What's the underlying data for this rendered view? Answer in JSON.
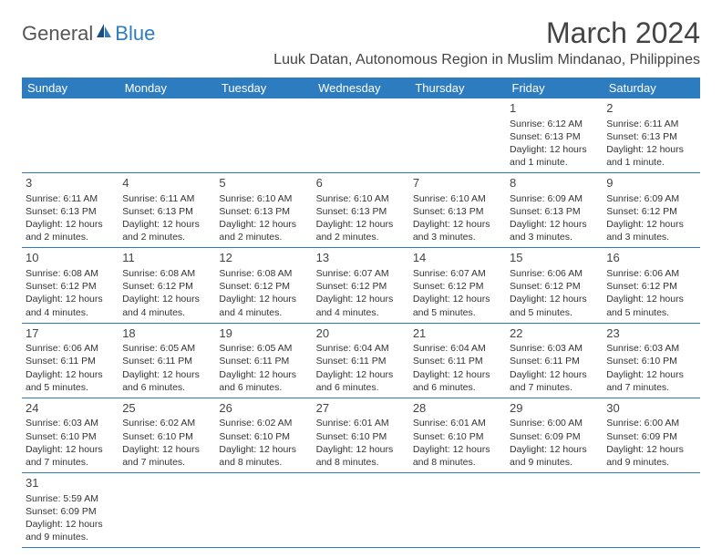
{
  "logo": {
    "part1": "General",
    "part2": "Blue"
  },
  "title": "March 2024",
  "location": "Luuk Datan, Autonomous Region in Muslim Mindanao, Philippines",
  "colors": {
    "header_bg": "#2e7cc0",
    "header_text": "#ffffff",
    "border": "#2e7cc0",
    "text": "#333333",
    "background": "#ffffff"
  },
  "dayHeaders": [
    "Sunday",
    "Monday",
    "Tuesday",
    "Wednesday",
    "Thursday",
    "Friday",
    "Saturday"
  ],
  "weeks": [
    [
      null,
      null,
      null,
      null,
      null,
      {
        "d": "1",
        "sr": "Sunrise: 6:12 AM",
        "ss": "Sunset: 6:13 PM",
        "dl": "Daylight: 12 hours and 1 minute."
      },
      {
        "d": "2",
        "sr": "Sunrise: 6:11 AM",
        "ss": "Sunset: 6:13 PM",
        "dl": "Daylight: 12 hours and 1 minute."
      }
    ],
    [
      {
        "d": "3",
        "sr": "Sunrise: 6:11 AM",
        "ss": "Sunset: 6:13 PM",
        "dl": "Daylight: 12 hours and 2 minutes."
      },
      {
        "d": "4",
        "sr": "Sunrise: 6:11 AM",
        "ss": "Sunset: 6:13 PM",
        "dl": "Daylight: 12 hours and 2 minutes."
      },
      {
        "d": "5",
        "sr": "Sunrise: 6:10 AM",
        "ss": "Sunset: 6:13 PM",
        "dl": "Daylight: 12 hours and 2 minutes."
      },
      {
        "d": "6",
        "sr": "Sunrise: 6:10 AM",
        "ss": "Sunset: 6:13 PM",
        "dl": "Daylight: 12 hours and 2 minutes."
      },
      {
        "d": "7",
        "sr": "Sunrise: 6:10 AM",
        "ss": "Sunset: 6:13 PM",
        "dl": "Daylight: 12 hours and 3 minutes."
      },
      {
        "d": "8",
        "sr": "Sunrise: 6:09 AM",
        "ss": "Sunset: 6:13 PM",
        "dl": "Daylight: 12 hours and 3 minutes."
      },
      {
        "d": "9",
        "sr": "Sunrise: 6:09 AM",
        "ss": "Sunset: 6:12 PM",
        "dl": "Daylight: 12 hours and 3 minutes."
      }
    ],
    [
      {
        "d": "10",
        "sr": "Sunrise: 6:08 AM",
        "ss": "Sunset: 6:12 PM",
        "dl": "Daylight: 12 hours and 4 minutes."
      },
      {
        "d": "11",
        "sr": "Sunrise: 6:08 AM",
        "ss": "Sunset: 6:12 PM",
        "dl": "Daylight: 12 hours and 4 minutes."
      },
      {
        "d": "12",
        "sr": "Sunrise: 6:08 AM",
        "ss": "Sunset: 6:12 PM",
        "dl": "Daylight: 12 hours and 4 minutes."
      },
      {
        "d": "13",
        "sr": "Sunrise: 6:07 AM",
        "ss": "Sunset: 6:12 PM",
        "dl": "Daylight: 12 hours and 4 minutes."
      },
      {
        "d": "14",
        "sr": "Sunrise: 6:07 AM",
        "ss": "Sunset: 6:12 PM",
        "dl": "Daylight: 12 hours and 5 minutes."
      },
      {
        "d": "15",
        "sr": "Sunrise: 6:06 AM",
        "ss": "Sunset: 6:12 PM",
        "dl": "Daylight: 12 hours and 5 minutes."
      },
      {
        "d": "16",
        "sr": "Sunrise: 6:06 AM",
        "ss": "Sunset: 6:12 PM",
        "dl": "Daylight: 12 hours and 5 minutes."
      }
    ],
    [
      {
        "d": "17",
        "sr": "Sunrise: 6:06 AM",
        "ss": "Sunset: 6:11 PM",
        "dl": "Daylight: 12 hours and 5 minutes."
      },
      {
        "d": "18",
        "sr": "Sunrise: 6:05 AM",
        "ss": "Sunset: 6:11 PM",
        "dl": "Daylight: 12 hours and 6 minutes."
      },
      {
        "d": "19",
        "sr": "Sunrise: 6:05 AM",
        "ss": "Sunset: 6:11 PM",
        "dl": "Daylight: 12 hours and 6 minutes."
      },
      {
        "d": "20",
        "sr": "Sunrise: 6:04 AM",
        "ss": "Sunset: 6:11 PM",
        "dl": "Daylight: 12 hours and 6 minutes."
      },
      {
        "d": "21",
        "sr": "Sunrise: 6:04 AM",
        "ss": "Sunset: 6:11 PM",
        "dl": "Daylight: 12 hours and 6 minutes."
      },
      {
        "d": "22",
        "sr": "Sunrise: 6:03 AM",
        "ss": "Sunset: 6:11 PM",
        "dl": "Daylight: 12 hours and 7 minutes."
      },
      {
        "d": "23",
        "sr": "Sunrise: 6:03 AM",
        "ss": "Sunset: 6:10 PM",
        "dl": "Daylight: 12 hours and 7 minutes."
      }
    ],
    [
      {
        "d": "24",
        "sr": "Sunrise: 6:03 AM",
        "ss": "Sunset: 6:10 PM",
        "dl": "Daylight: 12 hours and 7 minutes."
      },
      {
        "d": "25",
        "sr": "Sunrise: 6:02 AM",
        "ss": "Sunset: 6:10 PM",
        "dl": "Daylight: 12 hours and 7 minutes."
      },
      {
        "d": "26",
        "sr": "Sunrise: 6:02 AM",
        "ss": "Sunset: 6:10 PM",
        "dl": "Daylight: 12 hours and 8 minutes."
      },
      {
        "d": "27",
        "sr": "Sunrise: 6:01 AM",
        "ss": "Sunset: 6:10 PM",
        "dl": "Daylight: 12 hours and 8 minutes."
      },
      {
        "d": "28",
        "sr": "Sunrise: 6:01 AM",
        "ss": "Sunset: 6:10 PM",
        "dl": "Daylight: 12 hours and 8 minutes."
      },
      {
        "d": "29",
        "sr": "Sunrise: 6:00 AM",
        "ss": "Sunset: 6:09 PM",
        "dl": "Daylight: 12 hours and 9 minutes."
      },
      {
        "d": "30",
        "sr": "Sunrise: 6:00 AM",
        "ss": "Sunset: 6:09 PM",
        "dl": "Daylight: 12 hours and 9 minutes."
      }
    ],
    [
      {
        "d": "31",
        "sr": "Sunrise: 5:59 AM",
        "ss": "Sunset: 6:09 PM",
        "dl": "Daylight: 12 hours and 9 minutes."
      },
      null,
      null,
      null,
      null,
      null,
      null
    ]
  ]
}
